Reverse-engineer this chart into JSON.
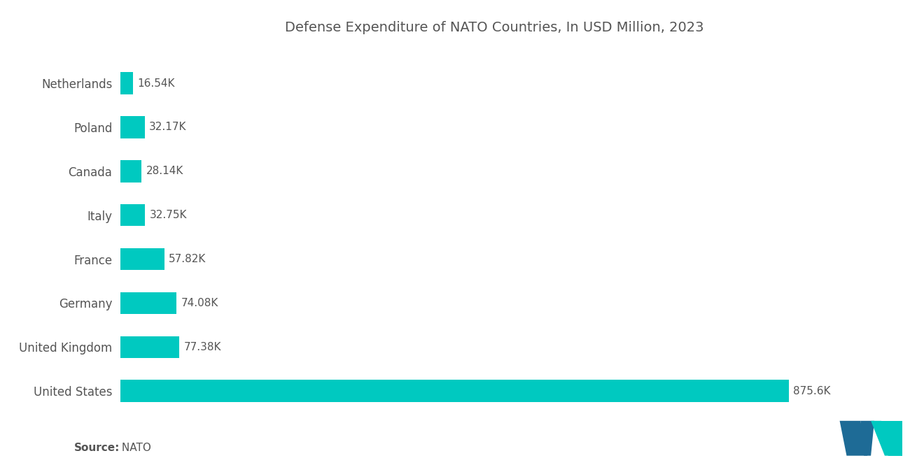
{
  "title": "Defense Expenditure of NATO Countries, In USD Million, 2023",
  "source_label_bold": "Source:",
  "source_label_normal": " NATO",
  "categories": [
    "Netherlands",
    "Poland",
    "Canada",
    "Italy",
    "France",
    "Germany",
    "United Kingdom",
    "United States"
  ],
  "values": [
    16.54,
    32.17,
    28.14,
    32.75,
    57.82,
    74.08,
    77.38,
    875.6
  ],
  "labels": [
    "16.54K",
    "32.17K",
    "28.14K",
    "32.75K",
    "57.82K",
    "74.08K",
    "77.38K",
    "875.6K"
  ],
  "bar_color": "#00C9C0",
  "background_color": "#ffffff",
  "title_color": "#555555",
  "label_color": "#555555",
  "source_color": "#555555",
  "title_fontsize": 14,
  "label_fontsize": 11,
  "tick_fontsize": 12,
  "source_fontsize": 11,
  "xlim": [
    0,
    980
  ],
  "bar_height": 0.5,
  "logo_dark_blue": "#1E6B96",
  "logo_teal": "#00C9C0"
}
